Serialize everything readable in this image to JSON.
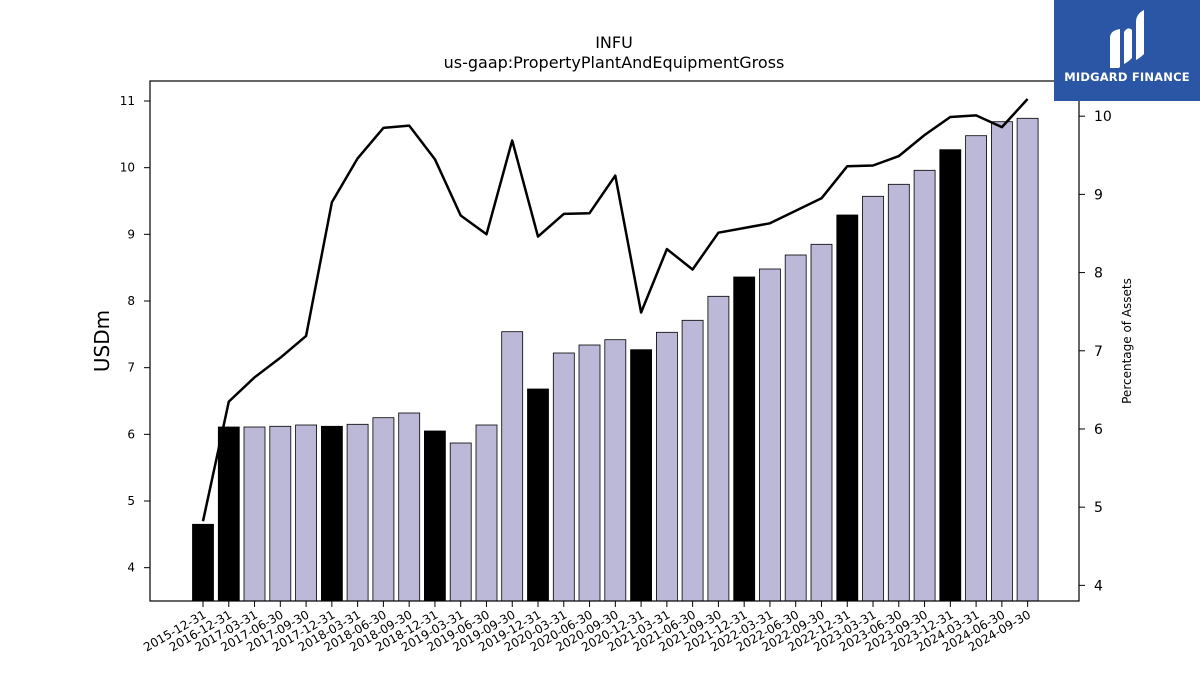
{
  "brand": {
    "name": "MIDGARD FINANCE",
    "color": "#2b56a6"
  },
  "colors": {
    "bar_highlight": "#000000",
    "bar_normal": "#bcb8d8",
    "line": "#000000"
  },
  "chart_data": {
    "type": "bar",
    "title": "INFU",
    "subtitle": "us-gaap:PropertyPlantAndEquipmentGross",
    "ylabel": "USDm",
    "ylabel_right": "Percentage of Assets",
    "ylim": [
      3.5,
      11.3
    ],
    "ylim_right": [
      3.8,
      10.45
    ],
    "yticks": [
      4,
      5,
      6,
      7,
      8,
      9,
      10,
      11
    ],
    "yticks_right": [
      4,
      5,
      6,
      7,
      8,
      9,
      10
    ],
    "grid": false,
    "categories": [
      "2015-12-31",
      "2016-12-31",
      "2017-03-31",
      "2017-06-30",
      "2017-09-30",
      "2017-12-31",
      "2018-03-31",
      "2018-06-30",
      "2018-09-30",
      "2018-12-31",
      "2019-03-31",
      "2019-06-30",
      "2019-09-30",
      "2019-12-31",
      "2020-03-31",
      "2020-06-30",
      "2020-09-30",
      "2020-12-31",
      "2021-03-31",
      "2021-06-30",
      "2021-09-30",
      "2021-12-31",
      "2022-03-31",
      "2022-06-30",
      "2022-09-30",
      "2022-12-31",
      "2023-03-31",
      "2023-06-30",
      "2023-09-30",
      "2023-12-31",
      "2024-03-31",
      "2024-06-30",
      "2024-09-30"
    ],
    "series": [
      {
        "values": [
          4.65,
          6.11,
          6.11,
          6.12,
          6.14,
          6.12,
          6.15,
          6.25,
          6.32,
          6.05,
          5.87,
          6.14,
          7.54,
          6.68,
          7.22,
          7.34,
          7.42,
          7.27,
          7.53,
          7.71,
          8.07,
          8.36,
          8.48,
          8.69,
          8.85,
          9.29,
          9.57,
          9.75,
          9.96,
          10.27,
          10.48,
          10.69,
          10.74
        ],
        "highlight": [
          true,
          true,
          false,
          false,
          false,
          true,
          false,
          false,
          false,
          true,
          false,
          false,
          false,
          true,
          false,
          false,
          false,
          true,
          false,
          false,
          false,
          true,
          false,
          false,
          false,
          true,
          false,
          false,
          false,
          true,
          false,
          false,
          false
        ]
      },
      {
        "axis": "right",
        "type": "line",
        "values": [
          4.82,
          6.35,
          6.66,
          6.91,
          7.19,
          8.9,
          9.46,
          9.85,
          9.88,
          9.45,
          8.73,
          8.49,
          9.69,
          8.46,
          8.75,
          8.76,
          9.24,
          7.49,
          8.3,
          8.04,
          8.51,
          8.57,
          8.63,
          8.79,
          8.95,
          9.36,
          9.37,
          9.49,
          9.76,
          9.99,
          10.01,
          9.86,
          10.22
        ]
      }
    ]
  }
}
